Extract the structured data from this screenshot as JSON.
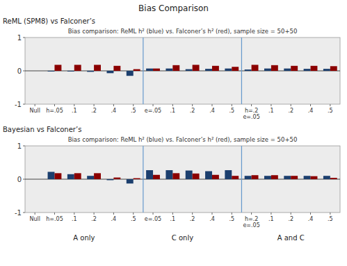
{
  "title": "Bias Comparison",
  "chart_data": [
    {
      "type": "bar",
      "subtitle": "ReML (SPM8) vs Falconer’s",
      "title": "Bias comparison: ReML h² (blue) vs. Falconer’s h² (red), sample size = 50+50",
      "categories": [
        "Null",
        "h=.05",
        ".1",
        ".2",
        ".4",
        ".5",
        "e=.05",
        ".1",
        ".2",
        ".4",
        ".5",
        "h=.2\ne=.05",
        ".1",
        ".2",
        ".4",
        ".5"
      ],
      "series": [
        {
          "color": "#1c3f6e",
          "values": [
            0.0,
            -0.02,
            -0.02,
            -0.03,
            -0.07,
            -0.15,
            0.07,
            0.07,
            0.05,
            0.06,
            0.07,
            0.04,
            0.07,
            0.07,
            0.06,
            0.06
          ]
        },
        {
          "color": "#8b0000",
          "values": [
            0.0,
            0.18,
            0.18,
            0.18,
            0.15,
            0.05,
            0.07,
            0.17,
            0.18,
            0.15,
            0.12,
            0.18,
            0.17,
            0.15,
            0.15,
            0.14
          ]
        }
      ],
      "vlines": {
        "values": [
          5.5,
          10.5
        ],
        "color": "#6699cc"
      },
      "ylim": [
        -1,
        1
      ],
      "yticks": [
        -1,
        0,
        1
      ],
      "grid": false
    },
    {
      "type": "bar",
      "subtitle": "Bayesian vs Falconer’s",
      "title": "Bias comparison: ReML h² (blue) vs. Falconer’s h² (red), sample size = 50+50",
      "categories": [
        "Null",
        "h=.05",
        ".1",
        ".2",
        ".4",
        ".5",
        "e=.05",
        ".1",
        ".2",
        ".4",
        ".5",
        "h=.2\ne=.05",
        ".1",
        ".2",
        ".4",
        ".5"
      ],
      "series": [
        {
          "color": "#1c3f6e",
          "values": [
            0.0,
            0.22,
            0.15,
            0.1,
            -0.03,
            -0.13,
            0.27,
            0.27,
            0.26,
            0.24,
            0.27,
            0.1,
            0.1,
            0.1,
            0.1,
            0.1
          ]
        },
        {
          "color": "#8b0000",
          "values": [
            0.0,
            0.18,
            0.18,
            0.18,
            0.05,
            0.03,
            0.13,
            0.18,
            0.17,
            0.13,
            0.1,
            0.12,
            0.12,
            0.1,
            0.09,
            0.04
          ]
        }
      ],
      "vlines": {
        "values": [
          5.5,
          10.5
        ],
        "color": "#6699cc"
      },
      "annotations": [
        {
          "text": "A only",
          "x": 2.5
        },
        {
          "text": "C only",
          "x": 7.5
        },
        {
          "text": "A and C",
          "x": 13.0
        }
      ],
      "ylim": [
        -1,
        1
      ],
      "yticks": [
        -1,
        0,
        1
      ],
      "grid": false
    }
  ]
}
